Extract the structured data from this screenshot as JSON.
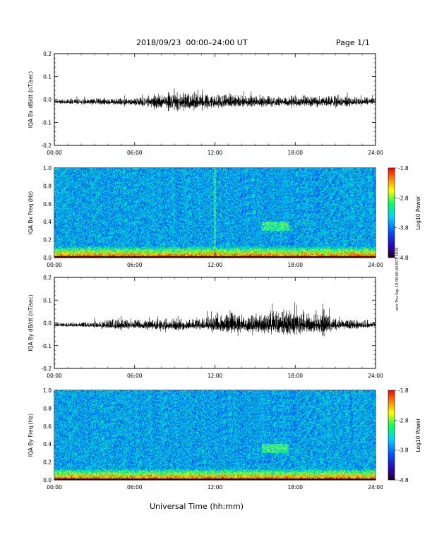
{
  "header": {
    "title": "2018/09/23  00:00–24:00 UT",
    "page": "Page 1/1"
  },
  "x_axis_label": "Universal Time (hh:mm)",
  "side_note": "wnt Thu Sep 19 08:00:03 EDT 2019",
  "colors": {
    "line": "#000000",
    "axes": "#000000",
    "background": "#ffffff"
  },
  "chart_data": [
    {
      "type": "line",
      "ylabel": "IQA Bx dB/dt (nT/sec)",
      "xlim": [
        0,
        24
      ],
      "ylim": [
        -0.2,
        0.2
      ],
      "x_ticks": [
        "00:00",
        "06:00",
        "12:00",
        "18:00",
        "24:00"
      ],
      "y_ticks": [
        "-0.2",
        "-0.1",
        "0.0",
        "0.1",
        "0.2"
      ],
      "x": [
        0,
        2,
        4,
        6,
        7,
        8,
        9,
        10,
        11,
        12,
        13,
        14,
        15,
        16,
        17,
        18,
        19,
        20,
        21,
        22,
        23,
        24
      ],
      "series": [
        {
          "values_max": [
            0.01,
            0.015,
            0.02,
            0.02,
            0.03,
            0.05,
            0.06,
            0.06,
            0.06,
            0.04,
            0.05,
            0.04,
            0.035,
            0.035,
            0.03,
            0.03,
            0.04,
            0.035,
            0.04,
            0.03,
            0.025,
            0.03
          ]
        },
        {
          "values_min": [
            -0.02,
            -0.025,
            -0.03,
            -0.035,
            -0.045,
            -0.06,
            -0.08,
            -0.07,
            -0.06,
            -0.05,
            -0.05,
            -0.045,
            -0.04,
            -0.045,
            -0.04,
            -0.04,
            -0.045,
            -0.045,
            -0.04,
            -0.04,
            -0.03,
            -0.02
          ]
        }
      ]
    },
    {
      "type": "heatmap",
      "ylabel": "IQA Bx Freq (Hz)",
      "xlim": [
        0,
        24
      ],
      "ylim": [
        0.0,
        1.0
      ],
      "x_ticks": [
        "00:00",
        "06:00",
        "12:00",
        "18:00",
        "24:00"
      ],
      "y_ticks": [
        "0.0",
        "0.2",
        "0.4",
        "0.6",
        "0.8",
        "1.0"
      ],
      "colorbar": {
        "label": "Log10 Power",
        "ticks": [
          "-1.8",
          "-2.8",
          "-3.8",
          "-4.8"
        ],
        "range": [
          -4.8,
          -1.8
        ]
      },
      "background_level": -3.6,
      "low_freq_level": -2.6,
      "features": [
        {
          "desc": "enhanced low-frequency band",
          "freq_range": [
            0.0,
            0.1
          ],
          "level": -2.4
        },
        {
          "desc": "narrow band",
          "time_range": [
            15.5,
            17.5
          ],
          "freq_range": [
            0.3,
            0.4
          ],
          "level": -2.8
        },
        {
          "desc": "vertical line",
          "time": 12.0,
          "level": -3.0
        }
      ]
    },
    {
      "type": "line",
      "ylabel": "IQA By dB/dt (nT/sec)",
      "xlim": [
        0,
        24
      ],
      "ylim": [
        -0.2,
        0.2
      ],
      "x_ticks": [
        "00:00",
        "06:00",
        "12:00",
        "18:00",
        "24:00"
      ],
      "y_ticks": [
        "-0.2",
        "-0.1",
        "0.0",
        "0.1",
        "0.2"
      ],
      "x": [
        0,
        2,
        4,
        5,
        6,
        7,
        8,
        9,
        10,
        11,
        12,
        13,
        14,
        15,
        16,
        17,
        18,
        19,
        20,
        21,
        22,
        23,
        24
      ],
      "series": [
        {
          "values_max": [
            0.01,
            0.015,
            0.03,
            0.05,
            0.03,
            0.03,
            0.04,
            0.04,
            0.03,
            0.05,
            0.06,
            0.12,
            0.07,
            0.08,
            0.1,
            0.1,
            0.12,
            0.08,
            0.1,
            0.05,
            0.04,
            0.03,
            0.02
          ]
        },
        {
          "values_min": [
            -0.015,
            -0.02,
            -0.03,
            -0.04,
            -0.03,
            -0.04,
            -0.04,
            -0.05,
            -0.04,
            -0.04,
            -0.05,
            -0.07,
            -0.06,
            -0.06,
            -0.07,
            -0.08,
            -0.08,
            -0.06,
            -0.07,
            -0.05,
            -0.04,
            -0.03,
            -0.02
          ]
        }
      ]
    },
    {
      "type": "heatmap",
      "ylabel": "IQA By Freq (Hz)",
      "xlim": [
        0,
        24
      ],
      "ylim": [
        0.0,
        1.0
      ],
      "x_ticks": [
        "00:00",
        "06:00",
        "12:00",
        "18:00",
        "24:00"
      ],
      "y_ticks": [
        "0.0",
        "0.2",
        "0.4",
        "0.6",
        "0.8",
        "1.0"
      ],
      "colorbar": {
        "label": "Log10 Power",
        "ticks": [
          "-1.8",
          "-2.8",
          "-3.8",
          "-4.8"
        ],
        "range": [
          -4.8,
          -1.8
        ]
      },
      "background_level": -3.6,
      "low_freq_level": -2.6,
      "features": [
        {
          "desc": "enhanced low-frequency band",
          "freq_range": [
            0.0,
            0.1
          ],
          "level": -2.4
        },
        {
          "desc": "narrow band",
          "time_range": [
            15.5,
            17.5
          ],
          "freq_range": [
            0.3,
            0.4
          ],
          "level": -2.8
        }
      ]
    }
  ]
}
